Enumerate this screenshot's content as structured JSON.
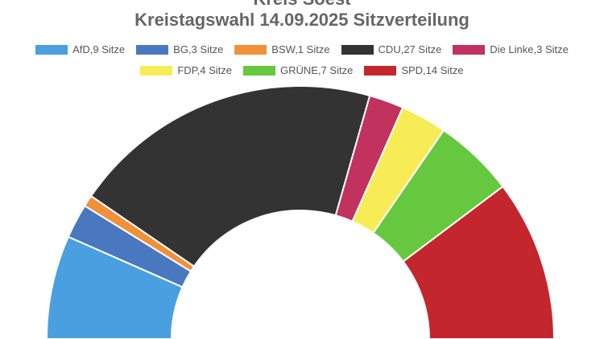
{
  "chart_data": {
    "type": "pie",
    "title_top": "Kreis Soest",
    "title": "Kreistagswahl 14.09.2025 Sitzverteilung",
    "legend_position": "top",
    "series": [
      {
        "name": "AfD",
        "label": "AfD,9 Sitze",
        "value": 9,
        "color": "#4a9fe0"
      },
      {
        "name": "BG",
        "label": "BG,3 Sitze",
        "value": 3,
        "color": "#4a78c0"
      },
      {
        "name": "BSW",
        "label": "BSW,1 Sitze",
        "value": 1,
        "color": "#f0913a"
      },
      {
        "name": "CDU",
        "label": "CDU,27 Sitze",
        "value": 27,
        "color": "#333333"
      },
      {
        "name": "Die Linke",
        "label": "Die Linke,3 Sitze",
        "value": 3,
        "color": "#c2325f"
      },
      {
        "name": "FDP",
        "label": "FDP,4 Sitze",
        "value": 4,
        "color": "#f7ec55"
      },
      {
        "name": "GRÜNE",
        "label": "GRÜNE,7 Sitze",
        "value": 7,
        "color": "#66c83e"
      },
      {
        "name": "SPD",
        "label": "SPD,14 Sitze",
        "value": 14,
        "color": "#c4262e"
      }
    ]
  }
}
